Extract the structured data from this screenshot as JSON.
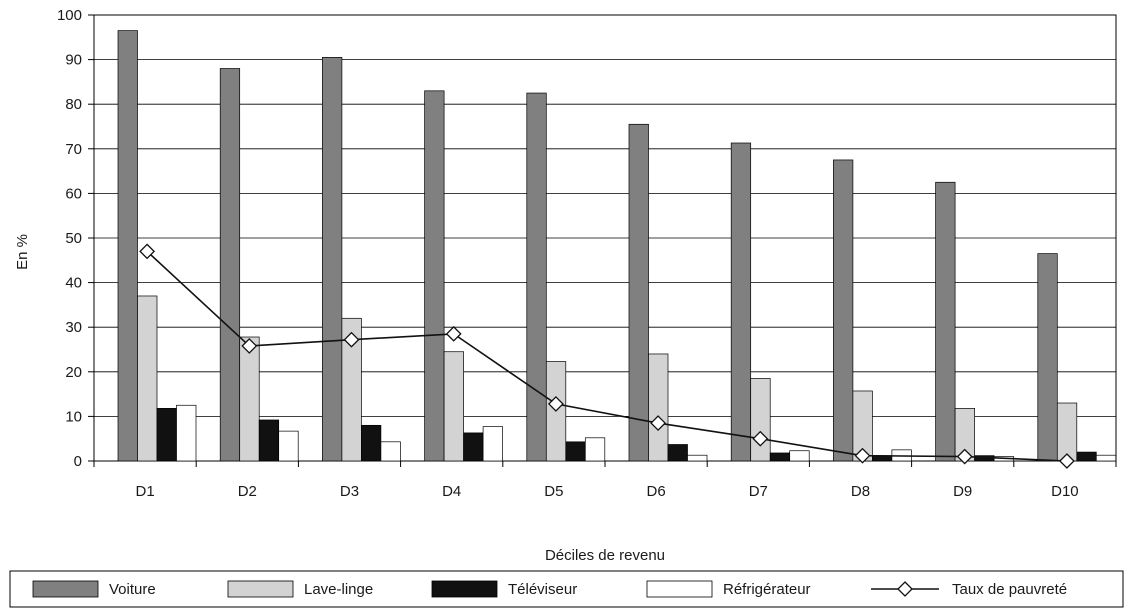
{
  "chart_data": {
    "type": "bar",
    "title": "",
    "xlabel": "Déciles de revenu",
    "ylabel": "En %",
    "ylim": [
      0,
      100
    ],
    "yticks": [
      0,
      10,
      20,
      30,
      40,
      50,
      60,
      70,
      80,
      90,
      100
    ],
    "grid": true,
    "legend_position": "bottom",
    "categories": [
      "D1",
      "D2",
      "D3",
      "D4",
      "D5",
      "D6",
      "D7",
      "D8",
      "D9",
      "D10"
    ],
    "series": [
      {
        "name": "Voiture",
        "kind": "bar",
        "color": "#808080",
        "values": [
          96.5,
          88,
          90.5,
          83,
          82.5,
          75.5,
          71.3,
          67.5,
          62.5,
          46.5
        ]
      },
      {
        "name": "Lave-linge",
        "kind": "bar",
        "color": "#d3d3d3",
        "values": [
          37,
          27.8,
          32,
          24.5,
          22.3,
          24,
          18.5,
          15.7,
          11.8,
          13
        ]
      },
      {
        "name": "Téléviseur",
        "kind": "bar",
        "color": "#111111",
        "values": [
          11.8,
          9.2,
          8,
          6.3,
          4.3,
          3.7,
          1.8,
          1.2,
          1.2,
          2
        ]
      },
      {
        "name": "Réfrigérateur",
        "kind": "bar",
        "color": "#ffffff",
        "values": [
          12.5,
          6.7,
          4.3,
          7.7,
          5.2,
          1.3,
          2.3,
          2.5,
          1,
          1.3
        ]
      },
      {
        "name": "Taux de pauvreté",
        "kind": "line",
        "color": "#111111",
        "marker": "diamond",
        "values": [
          47,
          25.8,
          27.2,
          28.5,
          12.8,
          8.5,
          5,
          1.2,
          1,
          0
        ]
      }
    ]
  }
}
